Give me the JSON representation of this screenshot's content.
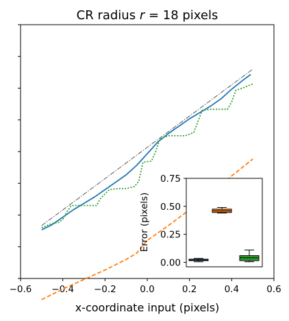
{
  "chart_data": [
    {
      "type": "line",
      "title_prefix": "CR radius ",
      "title_var": "r",
      "title_suffix": " = 18 pixels",
      "xlabel": "x-coordinate input (pixels)",
      "xlim": [
        -0.6,
        0.6
      ],
      "ylim": [
        -0.6,
        0.6
      ],
      "xticks": [
        "−0.6",
        "−0.4",
        "−0.2",
        "0.0",
        "0.2",
        "0.4",
        "0.6"
      ],
      "ytick_values": [
        -0.6,
        -0.45,
        -0.3,
        -0.15,
        0.0,
        0.15,
        0.3,
        0.45,
        0.6
      ],
      "y_tick_labels_visible": false,
      "series": [
        {
          "color": "#555555",
          "style": "dashdot",
          "x": [
            -0.5,
            0.5
          ],
          "y": [
            -0.35,
            0.39
          ]
        },
        {
          "color": "#1f77b4",
          "style": "solid",
          "x": [
            -0.5,
            -0.45,
            -0.4,
            -0.35,
            -0.3,
            -0.25,
            -0.2,
            -0.15,
            -0.1,
            -0.05,
            0.0,
            0.05,
            0.1,
            0.15,
            0.2,
            0.25,
            0.3,
            0.35,
            0.4,
            0.45,
            0.49
          ],
          "y": [
            -0.37,
            -0.345,
            -0.31,
            -0.275,
            -0.245,
            -0.215,
            -0.18,
            -0.145,
            -0.11,
            -0.065,
            -0.01,
            0.045,
            0.085,
            0.12,
            0.155,
            0.185,
            0.215,
            0.25,
            0.295,
            0.335,
            0.365
          ]
        },
        {
          "color": "#ff7f0e",
          "style": "dashed",
          "x": [
            -0.5,
            -0.4,
            -0.3,
            -0.2,
            -0.1,
            -0.05,
            0.0,
            0.1,
            0.2,
            0.3,
            0.4,
            0.5
          ],
          "y": [
            -0.7,
            -0.65,
            -0.605,
            -0.56,
            -0.51,
            -0.48,
            -0.42,
            -0.35,
            -0.275,
            -0.2,
            -0.115,
            -0.035
          ]
        },
        {
          "color": "#2ca02c",
          "style": "dotted",
          "x": [
            -0.5,
            -0.45,
            -0.42,
            -0.4,
            -0.38,
            -0.36,
            -0.3,
            -0.24,
            -0.22,
            -0.18,
            -0.14,
            -0.1,
            -0.06,
            -0.04,
            -0.02,
            0.02,
            0.04,
            0.06,
            0.1,
            0.14,
            0.18,
            0.22,
            0.26,
            0.3,
            0.34,
            0.38,
            0.4,
            0.42,
            0.45,
            0.5
          ],
          "y": [
            -0.36,
            -0.34,
            -0.335,
            -0.32,
            -0.285,
            -0.255,
            -0.255,
            -0.255,
            -0.22,
            -0.18,
            -0.175,
            -0.175,
            -0.165,
            -0.14,
            -0.05,
            -0.045,
            0.0,
            0.06,
            0.075,
            0.075,
            0.075,
            0.09,
            0.195,
            0.2,
            0.2,
            0.2,
            0.235,
            0.29,
            0.3,
            0.32
          ]
        }
      ]
    },
    {
      "type": "box",
      "ylabel": "Error (pixels)",
      "ylim": [
        -0.04,
        0.75
      ],
      "yticks": [
        "0.00",
        "0.25",
        "0.50",
        "0.75"
      ],
      "ytick_values": [
        0.0,
        0.25,
        0.5,
        0.75
      ],
      "boxes": [
        {
          "color": "#1f77b4",
          "whisker_low": 0.005,
          "q1": 0.015,
          "median": 0.02,
          "q3": 0.028,
          "whisker_high": 0.035
        },
        {
          "color": "#ff7f0e",
          "whisker_low": 0.44,
          "q1": 0.445,
          "median": 0.46,
          "q3": 0.475,
          "whisker_high": 0.49
        },
        {
          "color": "#2ca02c",
          "whisker_low": 0.005,
          "q1": 0.015,
          "median": 0.04,
          "q3": 0.06,
          "whisker_high": 0.11
        }
      ]
    }
  ]
}
